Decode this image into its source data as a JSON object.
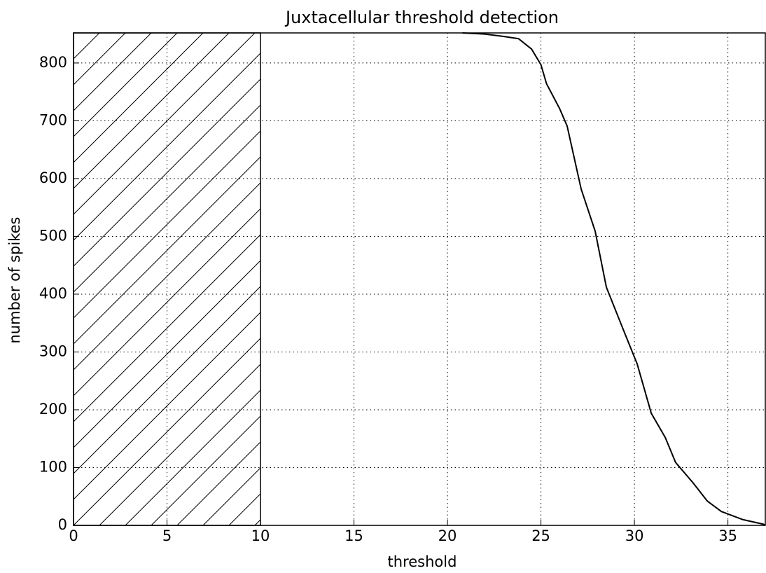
{
  "chart_data": {
    "type": "line",
    "title": "Juxtacellular threshold detection",
    "xlabel": "threshold",
    "ylabel": "number of spikes",
    "x": [
      20.8,
      22,
      23,
      23.8,
      24.5,
      25,
      25.3,
      26.0,
      26.4,
      27.15,
      27.9,
      28.5,
      29.4,
      30.15,
      30.9,
      31.65,
      32.2,
      33.15,
      33.9,
      34.65,
      35.8,
      36.9,
      37
    ],
    "series": [
      {
        "name": "spikes",
        "color": "#000000",
        "values": [
          852,
          850,
          846,
          842,
          824,
          797,
          764,
          721,
          691,
          582,
          509,
          412,
          339,
          279,
          194,
          152,
          109,
          73,
          42,
          24,
          10,
          2,
          0
        ]
      }
    ],
    "hatch_span": [
      0,
      10
    ],
    "xlim": [
      0,
      37
    ],
    "xticks": [
      0,
      5,
      10,
      15,
      20,
      25,
      30,
      35
    ],
    "ylim": [
      0,
      852
    ],
    "yticks": [
      0,
      100,
      200,
      300,
      400,
      500,
      600,
      700,
      800
    ],
    "grid": true
  }
}
